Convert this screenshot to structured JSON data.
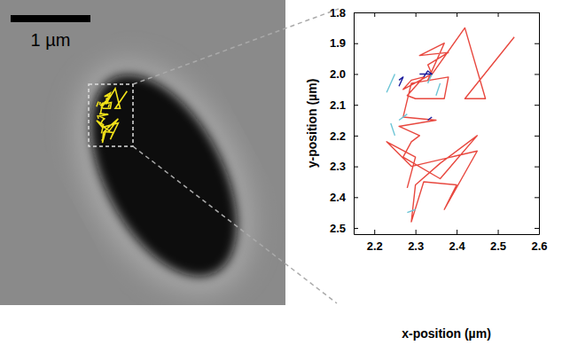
{
  "chart_data": {
    "type": "line",
    "x_label": "x-position (µm)",
    "y_label": "y-position (µm)",
    "annotations": [
      {
        "text": "1 µm"
      }
    ],
    "xlim": [
      2.15,
      2.6
    ],
    "ylim": [
      2.52,
      1.8
    ],
    "xticks": [
      2.2,
      2.3,
      2.4,
      2.5,
      2.6
    ],
    "yticks": [
      1.8,
      1.9,
      {
        "value": 2,
        "label": "2.0"
      },
      2.1,
      2.2,
      2.3,
      2.4,
      2.5
    ],
    "grid": false,
    "series": [
      {
        "color": "#e8483f",
        "x": [
          2.54,
          2.42,
          2.47,
          2.42,
          2.33,
          2.37,
          2.31,
          2.38,
          2.33,
          2.34,
          2.27,
          2.29,
          2.32,
          2.28,
          2.3,
          2.37,
          2.38,
          2.29,
          2.27,
          2.35,
          2.26,
          2.31,
          2.29,
          2.27,
          2.36,
          2.45,
          2.36,
          2.3,
          2.29,
          2.32,
          2.4,
          2.37,
          2.45,
          2.29,
          2.23,
          2.3,
          2.28
        ],
        "y": [
          1.88,
          2.08,
          2.08,
          1.85,
          2.02,
          1.9,
          1.94,
          1.93,
          1.97,
          2.0,
          2.05,
          2.02,
          2.01,
          2.07,
          2.08,
          2.08,
          2.01,
          2.03,
          2.14,
          2.15,
          2.17,
          2.2,
          2.22,
          2.27,
          2.34,
          2.2,
          2.29,
          2.36,
          2.48,
          2.35,
          2.36,
          2.44,
          2.25,
          2.3,
          2.22,
          2.27,
          2.37
        ]
      },
      {
        "color": "#6cc5d6",
        "x": [
          2.23,
          2.25,
          null,
          2.33,
          2.34,
          null,
          2.25,
          2.24,
          null,
          2.3,
          2.28,
          null,
          2.28,
          2.26,
          null,
          2.36,
          2.35
        ],
        "y": [
          2.06,
          2.0,
          null,
          2.03,
          2.0,
          null,
          2.2,
          2.16,
          null,
          2.44,
          2.45,
          null,
          2.13,
          2.15,
          null,
          2.03,
          2.07
        ]
      },
      {
        "color": "#1a1a9c",
        "x": [
          2.26,
          2.27,
          2.26,
          null,
          2.32,
          2.33,
          2.34,
          2.31,
          null,
          2.33,
          2.34
        ],
        "y": [
          2.04,
          2.01,
          2.02,
          null,
          2.01,
          1.99,
          2.0,
          2.0,
          null,
          2.15,
          2.14
        ]
      }
    ]
  }
}
